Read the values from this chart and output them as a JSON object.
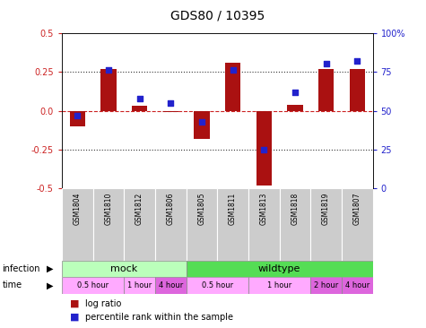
{
  "title": "GDS80 / 10395",
  "samples": [
    "GSM1804",
    "GSM1810",
    "GSM1812",
    "GSM1806",
    "GSM1805",
    "GSM1811",
    "GSM1813",
    "GSM1818",
    "GSM1819",
    "GSM1807"
  ],
  "log_ratio": [
    -0.1,
    0.27,
    0.03,
    -0.01,
    -0.18,
    0.31,
    -0.48,
    0.04,
    0.27,
    0.27
  ],
  "percentile": [
    47,
    76,
    58,
    55,
    43,
    76,
    25,
    62,
    80,
    82
  ],
  "ylim": [
    -0.5,
    0.5
  ],
  "yticks_left": [
    -0.5,
    -0.25,
    0.0,
    0.25,
    0.5
  ],
  "yticks_right_labels": [
    "0",
    "25",
    "50",
    "75",
    "100%"
  ],
  "bar_color": "#aa1111",
  "dot_color": "#2222cc",
  "dashed_zero_color": "#cc2222",
  "infection_mock_color": "#bbffbb",
  "infection_wild_color": "#55dd55",
  "time_light_color": "#ffaaff",
  "time_dark_color": "#dd66dd",
  "sample_bg_color": "#cccccc",
  "time_blocks": [
    {
      "label": "0.5 hour",
      "start": 0,
      "end": 2,
      "dark": false
    },
    {
      "label": "1 hour",
      "start": 2,
      "end": 3,
      "dark": false
    },
    {
      "label": "4 hour",
      "start": 3,
      "end": 4,
      "dark": true
    },
    {
      "label": "0.5 hour",
      "start": 4,
      "end": 6,
      "dark": false
    },
    {
      "label": "1 hour",
      "start": 6,
      "end": 8,
      "dark": false
    },
    {
      "label": "2 hour",
      "start": 8,
      "end": 9,
      "dark": true
    },
    {
      "label": "4 hour",
      "start": 9,
      "end": 10,
      "dark": true
    }
  ],
  "legend_log_ratio": "log ratio",
  "legend_percentile": "percentile rank within the sample"
}
